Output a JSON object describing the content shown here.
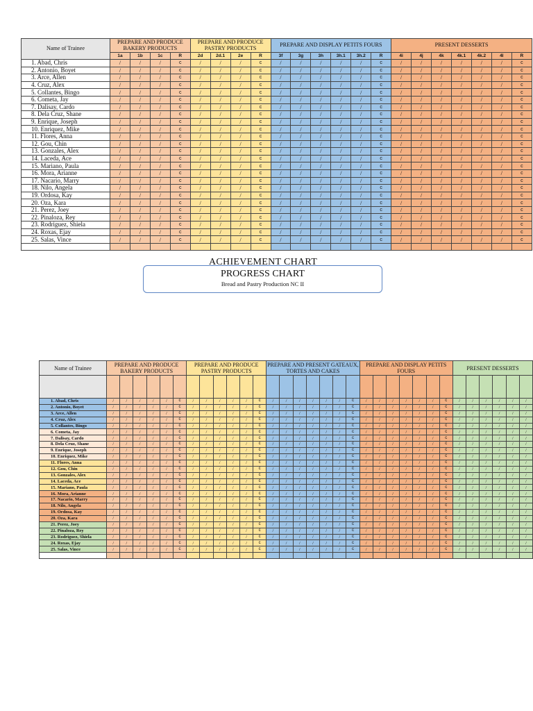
{
  "progress_chart": {
    "name_header": "Name of Trainee",
    "groups": [
      {
        "label": "PREPARE AND PRODUCE BAKERY PRODUCTS",
        "codes": [
          "1a",
          "1b",
          "1c",
          "R"
        ],
        "color": "#f7c9a6"
      },
      {
        "label": "PREPARE AND PRODUCE PASTRY PRODUCTS",
        "codes": [
          "2d",
          "2d.1",
          "2e",
          "R"
        ],
        "color": "#fde49a"
      },
      {
        "label": "PREPARE AND DISPLAY PETITS FOURS",
        "codes": [
          "3f",
          "3g",
          "3h",
          "3h.1",
          "3h.2",
          "R"
        ],
        "color": "#9dc3e6"
      },
      {
        "label": "PRESENT DESSERTS",
        "codes": [
          "4i",
          "4j",
          "4k",
          "4k.1",
          "4k.2",
          "4l",
          "R"
        ],
        "color": "#f4b183"
      }
    ],
    "trainees": [
      "1.  Abad, Chris",
      "2.  Antonio, Boyet",
      "3.  Arce, Allen",
      "4.  Cruz, Alex",
      "5.  Collantes, Bingo",
      "6.  Cometa, Jay",
      "7.  Dalisay, Cardo",
      "8.  Dela Cruz, Shane",
      "9.  Enrique, Joseph",
      "10. Enriquez, Mike",
      "11. Flores, Anna",
      "12. Gou, Chin",
      "13. Gonzales, Alex",
      "14. Laceda, Ace",
      "15. Mariano, Paula",
      "16. Mora, Arianne",
      "17. Nacario, Marry",
      "18. Nilo, Angela",
      "19. Ordosa, Kay",
      "20. Oza, Kara",
      "21. Perez, Joey",
      "22. Pinaloza, Rey",
      "23. Rodriguez, Shiela",
      "24. Roxas, Ejay",
      "25. Salas, Vince"
    ],
    "check_mark": "/",
    "r_mark": "c"
  },
  "achievement_title": "ACHIEVEMENT CHART",
  "title_box": {
    "title": "PROGRESS CHART",
    "subtitle": "Bread and Pastry Production NC II"
  },
  "achievement_chart": {
    "name_header": "Name of Trainee",
    "groups": [
      {
        "label": "PREPARE AND PRODUCE BAKERY PRODUCTS",
        "cols": 6,
        "color": "#f7c9a6"
      },
      {
        "label": "PREPARE AND PRODUCE PASTRY PRODUCTS",
        "cols": 6,
        "color": "#fde49a"
      },
      {
        "label": "PREPARE AND PRESENT GATEAUX, TORTES AND CAKES",
        "cols": 7,
        "color": "#9dc3e6"
      },
      {
        "label": "PREPARE AND DISPLAY PETITS FOURS",
        "cols": 7,
        "color": "#f4b183"
      },
      {
        "label": "PRESENT DESSERTS",
        "cols": 6,
        "color": "#c5e0b4"
      }
    ],
    "name_colors": [
      "#9dc3e6",
      "#9dc3e6",
      "#9dc3e6",
      "#9dc3e6",
      "#9dc3e6",
      "#fde9d9",
      "#fde9d9",
      "#fde9d9",
      "#fde9d9",
      "#fde9d9",
      "#fde49a",
      "#fde49a",
      "#fde49a",
      "#fde49a",
      "#fde49a",
      "#f4b183",
      "#f4b183",
      "#f4b183",
      "#f4b183",
      "#f4b183",
      "#c5e0b4",
      "#c5e0b4",
      "#c5e0b4",
      "#c5e0b4",
      "#c5e0b4"
    ],
    "trainees": [
      "1.  Abad, Chris",
      "2.  Antonio, Boyet",
      "3.  Arce, Allen",
      "4.  Cruz, Alex",
      "5.  Collantes, Bingo",
      "6.  Cometa, Jay",
      "7.  Dalisay, Cardo",
      "8.  Dela Cruz, Shane",
      "9.  Enrique, Joseph",
      "10.  Enriquez, Mike",
      "11.  Flores, Anna",
      "12.  Gou, Chin",
      "13.  Gonzales, Alex",
      "14.  Laceda, Ace",
      "15.  Mariano, Paula",
      "16.  Mora, Arianne",
      "17.  Nacario, Marry",
      "18.  Nilo, Angela",
      "19.  Ordosa, Kay",
      "20.  Oza, Kara",
      "21.  Perez, Joey",
      "22.  Pinaloza, Rey",
      "23.  Rodriguez, Shiela",
      "24.  Roxas, Ejay",
      "25.  Salas, Vince"
    ],
    "check_mark": "/",
    "r_mark": "c"
  }
}
